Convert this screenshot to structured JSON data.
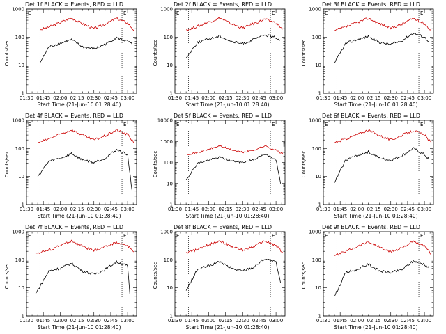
{
  "chart_data": [
    {
      "type": "line",
      "title": "Det 1f BLACK = Events, RED = LLD",
      "xlabel": "Start Time (21-Jun-10 01:28:40)",
      "ylabel": "Counts/sec",
      "ylim": [
        1,
        1000
      ],
      "yscale": "log",
      "x_ticks": [
        "01:30",
        "01:45",
        "02:00",
        "02:15",
        "02:30",
        "02:45",
        "03:00"
      ],
      "y_ticks": [
        "1",
        "10",
        "100",
        "1000"
      ],
      "marker_left": "E",
      "marker_right": "E",
      "series": [
        {
          "color": "#cc0000",
          "x": [
            "01:42",
            "01:50",
            "02:00",
            "02:10",
            "02:20",
            "02:30",
            "02:40",
            "02:50",
            "03:00",
            "03:06"
          ],
          "values": [
            180,
            230,
            330,
            480,
            300,
            200,
            290,
            460,
            320,
            170
          ]
        },
        {
          "color": "#000000",
          "x": [
            "01:42",
            "01:50",
            "02:00",
            "02:10",
            "02:20",
            "02:30",
            "02:40",
            "02:50",
            "03:00",
            "03:04"
          ],
          "values": [
            12,
            45,
            60,
            80,
            45,
            38,
            55,
            95,
            70,
            55
          ]
        }
      ]
    },
    {
      "type": "line",
      "title": "Det 2f BLACK = Events, RED = LLD",
      "xlabel": "Start Time (21-Jun-10 01:28:40)",
      "ylabel": "Counts/sec",
      "ylim": [
        1,
        1000
      ],
      "yscale": "log",
      "x_ticks": [
        "01:30",
        "01:45",
        "02:00",
        "02:15",
        "02:30",
        "02:45",
        "03:00"
      ],
      "y_ticks": [
        "1",
        "10",
        "100",
        "1000"
      ],
      "marker_left": "E",
      "marker_right": "E",
      "series": [
        {
          "color": "#cc0000",
          "x": [
            "01:40",
            "01:50",
            "02:00",
            "02:10",
            "02:20",
            "02:30",
            "02:40",
            "02:50",
            "03:00",
            "03:06"
          ],
          "values": [
            180,
            240,
            340,
            480,
            300,
            210,
            300,
            430,
            320,
            190
          ]
        },
        {
          "color": "#000000",
          "x": [
            "01:40",
            "01:50",
            "02:00",
            "02:10",
            "02:20",
            "02:30",
            "02:40",
            "02:50",
            "03:00",
            "03:04"
          ],
          "values": [
            18,
            65,
            85,
            110,
            70,
            58,
            80,
            120,
            95,
            80
          ]
        }
      ]
    },
    {
      "type": "line",
      "title": "Det 3f BLACK = Events, RED = LLD",
      "xlabel": "Start Time (21-Jun-10 01:28:40)",
      "ylabel": "Counts/sec",
      "ylim": [
        1,
        1000
      ],
      "yscale": "log",
      "x_ticks": [
        "01:30",
        "01:45",
        "02:00",
        "02:15",
        "02:30",
        "02:45",
        "03:00"
      ],
      "y_ticks": [
        "1",
        "10",
        "100",
        "1000"
      ],
      "marker_left": "E",
      "marker_right": "E",
      "series": [
        {
          "color": "#cc0000",
          "x": [
            "01:40",
            "01:50",
            "02:00",
            "02:10",
            "02:20",
            "02:30",
            "02:40",
            "02:50",
            "03:00",
            "03:06"
          ],
          "values": [
            170,
            230,
            330,
            470,
            300,
            210,
            290,
            470,
            300,
            170
          ]
        },
        {
          "color": "#000000",
          "x": [
            "01:40",
            "01:50",
            "02:00",
            "02:10",
            "02:20",
            "02:30",
            "02:40",
            "02:50",
            "03:00",
            "03:04"
          ],
          "values": [
            12,
            60,
            80,
            105,
            65,
            55,
            75,
            140,
            100,
            70
          ]
        }
      ]
    },
    {
      "type": "line",
      "title": "Det 4f BLACK = Events, RED = LLD",
      "xlabel": "Start Time (21-Jun-10 01:28:40)",
      "ylabel": "Counts/sec",
      "ylim": [
        1,
        1000
      ],
      "yscale": "log",
      "x_ticks": [
        "01:30",
        "01:45",
        "02:00",
        "02:15",
        "02:30",
        "02:45",
        "03:00"
      ],
      "y_ticks": [
        "1",
        "10",
        "100",
        "1000"
      ],
      "marker_left": "E",
      "marker_right": "E",
      "series": [
        {
          "color": "#cc0000",
          "x": [
            "01:40",
            "01:50",
            "02:00",
            "02:10",
            "02:20",
            "02:30",
            "02:40",
            "02:50",
            "03:00",
            "03:06"
          ],
          "values": [
            160,
            220,
            320,
            460,
            290,
            200,
            280,
            450,
            310,
            160
          ]
        },
        {
          "color": "#000000",
          "x": [
            "01:40",
            "01:50",
            "02:00",
            "02:10",
            "02:20",
            "02:30",
            "02:40",
            "02:50",
            "03:00",
            "03:04"
          ],
          "values": [
            10,
            35,
            45,
            65,
            40,
            32,
            45,
            90,
            60,
            3
          ]
        }
      ]
    },
    {
      "type": "line",
      "title": "Det 5f BLACK = Events, RED = LLD",
      "xlabel": "Start Time (21-Jun-10 01:28:40)",
      "ylabel": "Counts/sec",
      "ylim": [
        1,
        10000
      ],
      "yscale": "log",
      "x_ticks": [
        "01:30",
        "01:45",
        "02:00",
        "02:15",
        "02:30",
        "02:45",
        "03:00"
      ],
      "y_ticks": [
        "1",
        "10",
        "100",
        "1000",
        "10000"
      ],
      "marker_left": "E",
      "marker_right": "E",
      "series": [
        {
          "color": "#cc0000",
          "x": [
            "01:40",
            "01:50",
            "02:00",
            "02:10",
            "02:20",
            "02:30",
            "02:40",
            "02:50",
            "03:00",
            "03:06"
          ],
          "values": [
            250,
            290,
            420,
            620,
            400,
            300,
            380,
            620,
            380,
            260
          ]
        },
        {
          "color": "#000000",
          "x": [
            "01:40",
            "01:50",
            "02:00",
            "02:10",
            "02:20",
            "02:30",
            "02:40",
            "02:50",
            "03:00",
            "03:04"
          ],
          "values": [
            15,
            90,
            130,
            180,
            120,
            100,
            140,
            240,
            140,
            10
          ]
        }
      ]
    },
    {
      "type": "line",
      "title": "Det 6f BLACK = Events, RED = LLD",
      "xlabel": "Start Time (21-Jun-10 01:28:40)",
      "ylabel": "Counts/sec",
      "ylim": [
        1,
        1000
      ],
      "yscale": "log",
      "x_ticks": [
        "01:30",
        "01:45",
        "02:00",
        "02:15",
        "02:30",
        "02:45",
        "03:00"
      ],
      "y_ticks": [
        "1",
        "10",
        "100",
        "1000"
      ],
      "marker_left": "E",
      "marker_right": "E",
      "series": [
        {
          "color": "#cc0000",
          "x": [
            "01:40",
            "01:50",
            "02:00",
            "02:10",
            "02:20",
            "02:30",
            "02:40",
            "02:50",
            "03:00",
            "03:06"
          ],
          "values": [
            160,
            220,
            310,
            450,
            290,
            200,
            290,
            440,
            300,
            160
          ]
        },
        {
          "color": "#000000",
          "x": [
            "01:40",
            "01:50",
            "02:00",
            "02:10",
            "02:20",
            "02:30",
            "02:40",
            "02:50",
            "03:00",
            "03:04"
          ],
          "values": [
            6,
            40,
            55,
            75,
            45,
            38,
            55,
            100,
            60,
            40
          ]
        }
      ]
    },
    {
      "type": "line",
      "title": "Det 7f BLACK = Events, RED = LLD",
      "xlabel": "Start Time (21-Jun-10 01:28:40)",
      "ylabel": "Counts/sec",
      "ylim": [
        1,
        1000
      ],
      "yscale": "log",
      "x_ticks": [
        "01:30",
        "01:45",
        "02:00",
        "02:15",
        "02:30",
        "02:45",
        "03:00"
      ],
      "y_ticks": [
        "1",
        "10",
        "100",
        "1000"
      ],
      "marker_left": "E",
      "marker_right": "E",
      "series": [
        {
          "color": "#cc0000",
          "x": [
            "01:38",
            "01:50",
            "02:00",
            "02:10",
            "02:20",
            "02:30",
            "02:40",
            "02:50",
            "03:00",
            "03:06"
          ],
          "values": [
            170,
            220,
            320,
            470,
            300,
            210,
            290,
            420,
            310,
            190
          ]
        },
        {
          "color": "#000000",
          "x": [
            "01:38",
            "01:50",
            "02:00",
            "02:10",
            "02:20",
            "02:30",
            "02:40",
            "02:50",
            "03:00",
            "03:02"
          ],
          "values": [
            6,
            40,
            50,
            75,
            40,
            30,
            45,
            85,
            60,
            6
          ]
        }
      ]
    },
    {
      "type": "line",
      "title": "Det 8f BLACK = Events, RED = LLD",
      "xlabel": "Start Time (21-Jun-10 01:28:40)",
      "ylabel": "Counts/sec",
      "ylim": [
        1,
        1000
      ],
      "yscale": "log",
      "x_ticks": [
        "01:30",
        "01:45",
        "02:00",
        "02:15",
        "02:30",
        "02:45",
        "03:00"
      ],
      "y_ticks": [
        "1",
        "10",
        "100",
        "1000"
      ],
      "marker_left": "E",
      "marker_right": "E",
      "series": [
        {
          "color": "#cc0000",
          "x": [
            "01:40",
            "01:50",
            "02:00",
            "02:10",
            "02:20",
            "02:30",
            "02:40",
            "02:50",
            "03:00",
            "03:06"
          ],
          "values": [
            180,
            230,
            340,
            480,
            300,
            220,
            300,
            470,
            320,
            180
          ]
        },
        {
          "color": "#000000",
          "x": [
            "01:40",
            "01:50",
            "02:00",
            "02:10",
            "02:20",
            "02:30",
            "02:40",
            "02:50",
            "03:00",
            "03:04"
          ],
          "values": [
            8,
            45,
            60,
            85,
            50,
            40,
            55,
            110,
            80,
            15
          ]
        }
      ]
    },
    {
      "type": "line",
      "title": "Det 9f BLACK = Events, RED = LLD",
      "xlabel": "Start Time (21-Jun-10 01:28:40)",
      "ylabel": "Counts/sec",
      "ylim": [
        1,
        1000
      ],
      "yscale": "log",
      "x_ticks": [
        "01:30",
        "01:45",
        "02:00",
        "02:15",
        "02:30",
        "02:45",
        "03:00"
      ],
      "y_ticks": [
        "1",
        "10",
        "100",
        "1000"
      ],
      "marker_left": "E",
      "marker_right": "E",
      "series": [
        {
          "color": "#cc0000",
          "x": [
            "01:40",
            "01:50",
            "02:00",
            "02:10",
            "02:20",
            "02:30",
            "02:40",
            "02:50",
            "03:00",
            "03:06"
          ],
          "values": [
            140,
            200,
            300,
            440,
            280,
            190,
            270,
            440,
            300,
            160
          ]
        },
        {
          "color": "#000000",
          "x": [
            "01:40",
            "01:50",
            "02:00",
            "02:10",
            "02:20",
            "02:30",
            "02:40",
            "02:50",
            "03:00",
            "03:04"
          ],
          "values": [
            5,
            35,
            45,
            70,
            40,
            35,
            45,
            90,
            70,
            50
          ]
        }
      ]
    }
  ]
}
